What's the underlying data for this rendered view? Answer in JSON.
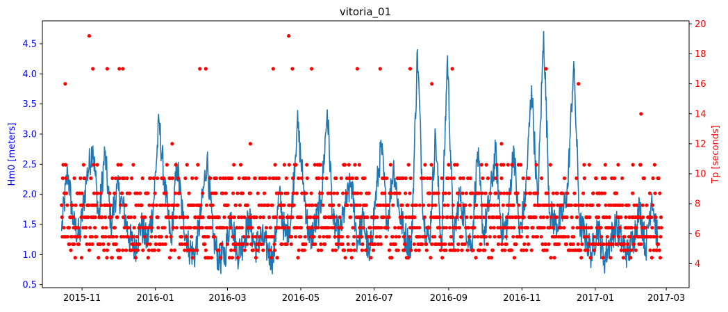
{
  "chart_data": {
    "type": "line",
    "title": "vitoria_01",
    "xlabel": "",
    "x_tick_labels": [
      "2015-11",
      "2016-01",
      "2016-03",
      "2016-05",
      "2016-07",
      "2016-09",
      "2016-11",
      "2017-01",
      "2017-03"
    ],
    "x_ticks": [
      "2015-11-01",
      "2016-01-01",
      "2016-03-01",
      "2016-05-01",
      "2016-07-01",
      "2016-09-01",
      "2016-11-01",
      "2017-01-01",
      "2017-03-01"
    ],
    "x_range": [
      "2015-09-29",
      "2017-03-20"
    ],
    "left_axis": {
      "label": "Hm0 [meters]",
      "color": "#0000ff",
      "ylim": [
        0.45,
        4.88
      ],
      "ticks": [
        0.5,
        1.0,
        1.5,
        2.0,
        2.5,
        3.0,
        3.5,
        4.0,
        4.5
      ],
      "tick_labels": [
        "0.5",
        "1.0",
        "1.5",
        "2.0",
        "2.5",
        "3.0",
        "3.5",
        "4.0",
        "4.5"
      ]
    },
    "right_axis": {
      "label": "Tp [seconds]",
      "color": "#ff0000",
      "ylim": [
        2.4,
        20.2
      ],
      "ticks": [
        4,
        6,
        8,
        10,
        12,
        14,
        16,
        18,
        20
      ],
      "tick_labels": [
        "4",
        "6",
        "8",
        "10",
        "12",
        "14",
        "16",
        "18",
        "20"
      ]
    },
    "grid": false,
    "legend": "none",
    "series": [
      {
        "kind": "line",
        "axis": "left",
        "color": "#1f77b4",
        "x": [
          "2015-10-15",
          "2015-10-20",
          "2015-10-25",
          "2015-10-30",
          "2015-11-05",
          "2015-11-10",
          "2015-11-15",
          "2015-11-20",
          "2015-11-25",
          "2015-11-30",
          "2015-12-05",
          "2015-12-10",
          "2015-12-15",
          "2015-12-20",
          "2015-12-25",
          "2015-12-30",
          "2016-01-04",
          "2016-01-09",
          "2016-01-14",
          "2016-01-19",
          "2016-01-24",
          "2016-01-29",
          "2016-02-03",
          "2016-02-08",
          "2016-02-13",
          "2016-02-18",
          "2016-02-23",
          "2016-02-28",
          "2016-03-04",
          "2016-03-09",
          "2016-03-14",
          "2016-03-19",
          "2016-03-24",
          "2016-03-29",
          "2016-04-03",
          "2016-04-08",
          "2016-04-13",
          "2016-04-18",
          "2016-04-23",
          "2016-04-28",
          "2016-05-03",
          "2016-05-08",
          "2016-05-13",
          "2016-05-18",
          "2016-05-23",
          "2016-05-28",
          "2016-06-02",
          "2016-06-07",
          "2016-06-12",
          "2016-06-17",
          "2016-06-22",
          "2016-06-27",
          "2016-07-02",
          "2016-07-07",
          "2016-07-12",
          "2016-07-17",
          "2016-07-22",
          "2016-07-27",
          "2016-08-01",
          "2016-08-06",
          "2016-08-11",
          "2016-08-16",
          "2016-08-21",
          "2016-08-26",
          "2016-08-31",
          "2016-09-05",
          "2016-09-10",
          "2016-09-15",
          "2016-09-20",
          "2016-09-25",
          "2016-09-30",
          "2016-10-05",
          "2016-10-10",
          "2016-10-15",
          "2016-10-20",
          "2016-10-25",
          "2016-10-30",
          "2016-11-04",
          "2016-11-09",
          "2016-11-14",
          "2016-11-19",
          "2016-11-24",
          "2016-11-29",
          "2016-12-04",
          "2016-12-09",
          "2016-12-14",
          "2016-12-19",
          "2016-12-24",
          "2016-12-29",
          "2017-01-03",
          "2017-01-08",
          "2017-01-13",
          "2017-01-18",
          "2017-01-23",
          "2017-01-28",
          "2017-02-02",
          "2017-02-07",
          "2017-02-12",
          "2017-02-17",
          "2017-02-22"
        ],
        "values": [
          1.4,
          2.4,
          1.5,
          1.3,
          2.3,
          2.8,
          1.6,
          2.7,
          1.5,
          2.1,
          1.8,
          1.3,
          1.1,
          1.5,
          1.2,
          1.7,
          3.2,
          2.1,
          1.2,
          2.5,
          1.6,
          1.1,
          1.0,
          1.7,
          2.6,
          1.3,
          0.9,
          1.0,
          1.7,
          1.0,
          1.2,
          1.6,
          1.1,
          1.3,
          1.1,
          0.9,
          2.0,
          1.3,
          1.6,
          3.2,
          2.2,
          1.2,
          1.5,
          1.9,
          3.4,
          1.5,
          1.3,
          1.8,
          2.2,
          1.2,
          1.6,
          0.9,
          1.9,
          2.8,
          1.5,
          2.5,
          1.7,
          1.3,
          1.1,
          4.4,
          1.6,
          1.2,
          3.0,
          1.1,
          4.3,
          1.2,
          2.0,
          1.5,
          1.1,
          2.7,
          1.3,
          1.9,
          2.7,
          1.4,
          1.5,
          2.8,
          1.3,
          2.0,
          3.8,
          1.8,
          4.7,
          1.7,
          1.5,
          1.6,
          2.1,
          4.2,
          1.5,
          1.3,
          1.0,
          1.5,
          0.9,
          1.2,
          1.5,
          1.2,
          1.0,
          1.3,
          1.8,
          1.1,
          2.0,
          1.2
        ]
      },
      {
        "kind": "scatter",
        "axis": "right",
        "color": "#ff0000",
        "x": [
          "2015-10-18",
          "2015-11-07",
          "2015-11-10",
          "2015-11-22",
          "2015-12-02",
          "2015-12-05",
          "2016-02-07",
          "2016-02-12",
          "2016-04-08",
          "2016-04-21",
          "2016-04-24",
          "2016-05-10",
          "2016-06-17",
          "2016-07-06",
          "2016-07-31",
          "2016-08-18",
          "2016-09-04",
          "2016-11-21",
          "2016-12-18",
          "2017-02-08",
          "2016-10-15",
          "2016-03-20",
          "2016-01-15"
        ],
        "values": [
          16,
          19.2,
          17,
          17,
          17,
          17,
          17,
          17,
          17,
          19.2,
          17,
          17,
          17,
          17,
          17,
          16,
          17,
          17,
          16,
          14,
          12,
          12,
          12
        ]
      }
    ]
  }
}
